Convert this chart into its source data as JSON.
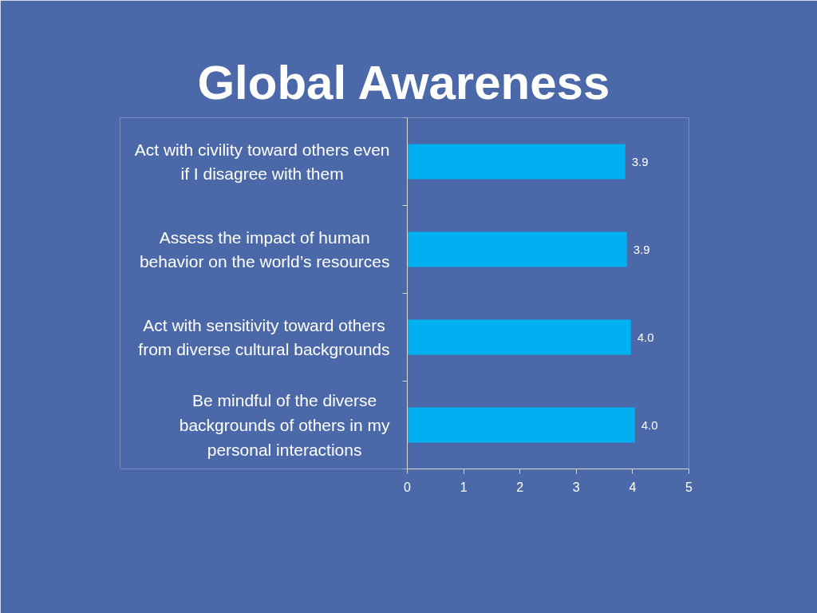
{
  "chart_data": {
    "type": "bar",
    "orientation": "horizontal",
    "title": "Global Awareness",
    "categories": [
      "Act with civility toward others even\nif I disagree with them",
      "Assess the impact of human\nbehavior on the world’s resources",
      "Act with sensitivity toward others\nfrom diverse cultural backgrounds",
      "Be mindful of the diverse\nbackgrounds of others in my\npersonal interactions"
    ],
    "values": [
      3.87,
      3.9,
      3.97,
      4.04
    ],
    "value_labels": [
      "3.9",
      "3.9",
      "4.0",
      "4.0"
    ],
    "color": "#00b0f0",
    "xlim": [
      0,
      5
    ],
    "xticks": [
      0,
      1,
      2,
      3,
      4,
      5
    ]
  }
}
